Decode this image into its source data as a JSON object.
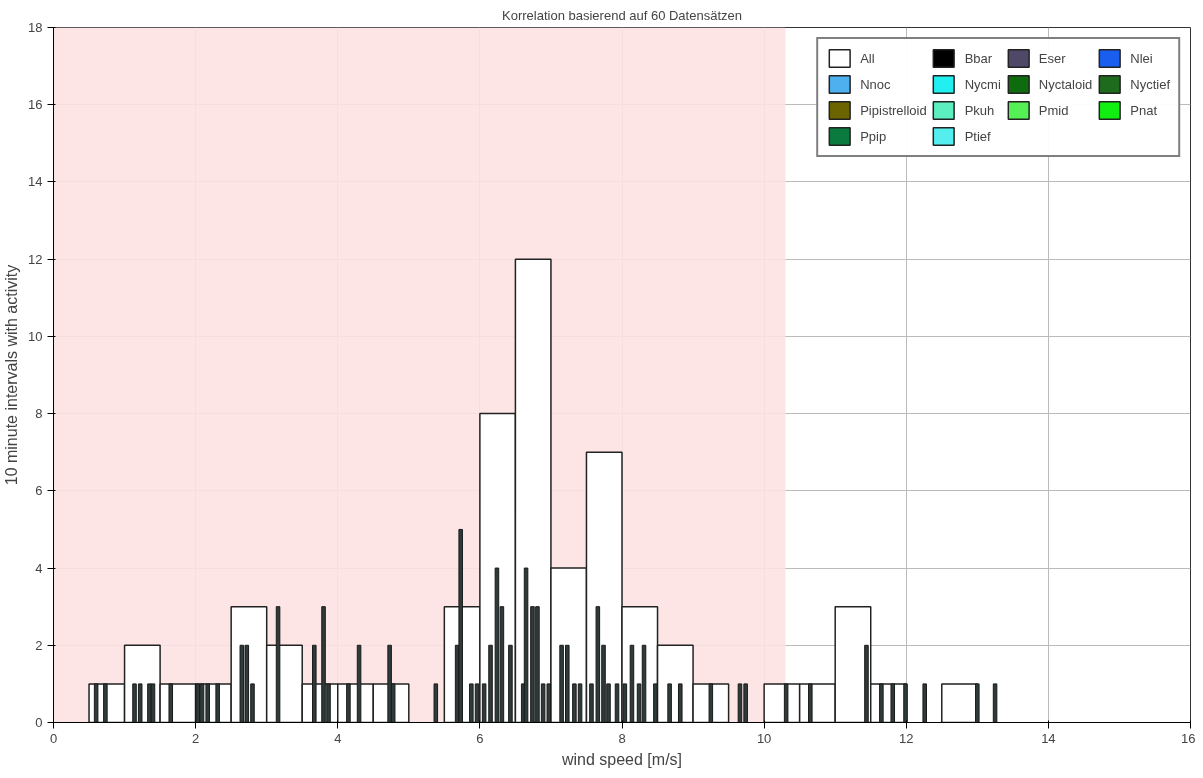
{
  "chart_data": {
    "type": "histogram",
    "title": "Korrelation basierend auf 60 Datensätzen",
    "xlabel": "wind speed [m/s]",
    "ylabel": "10 minute intervals with activity",
    "bins": [
      0.5,
      1.0,
      1.5,
      2.0,
      2.5,
      3.0,
      3.5,
      4.0,
      4.5,
      5.0,
      5.5,
      6.0,
      6.5,
      7.0,
      7.5,
      8.0,
      8.5,
      9.0,
      9.5,
      10.0,
      10.5,
      11.0,
      11.5,
      12.0,
      12.5,
      13.0
    ],
    "series": [
      {
        "name": "All",
        "color": "#ffffff",
        "values": [
          1,
          2,
          1,
          1,
          3,
          2,
          1,
          1,
          1,
          0,
          3,
          8,
          12,
          4,
          7,
          3,
          2,
          1,
          0,
          1,
          1,
          3,
          1,
          0,
          1
        ]
      },
      {
        "type": "bar",
        "color": "#2f3b3b",
        "x": [
          0.6,
          0.73,
          1.14,
          1.22,
          1.35,
          1.4,
          1.65,
          2.03,
          2.09,
          2.17,
          2.31,
          2.65,
          2.72,
          2.8,
          3.16,
          3.67,
          3.8,
          3.87,
          4.15,
          4.3,
          4.73,
          4.78,
          5.38,
          5.68,
          5.73,
          5.88,
          5.96,
          6.06,
          6.15,
          6.24,
          6.31,
          6.43,
          6.61,
          6.65,
          6.74,
          6.81,
          6.89,
          6.97,
          7.15,
          7.23,
          7.33,
          7.41,
          7.57,
          7.66,
          7.74,
          7.81,
          7.93,
          8.04,
          8.14,
          8.24,
          8.31,
          8.47,
          8.67,
          8.82,
          9.25,
          9.66,
          9.74,
          10.31,
          10.65,
          11.44,
          11.65,
          11.81,
          11.99,
          12.26,
          13.0,
          13.25
        ],
        "values": [
          1,
          1,
          1,
          1,
          1,
          1,
          1,
          1,
          1,
          1,
          1,
          2,
          2,
          1,
          3,
          2,
          3,
          1,
          1,
          2,
          2,
          1,
          1,
          2,
          5,
          1,
          1,
          1,
          2,
          4,
          3,
          2,
          1,
          4,
          3,
          3,
          1,
          1,
          2,
          2,
          1,
          1,
          1,
          3,
          2,
          1,
          1,
          1,
          2,
          1,
          2,
          1,
          1,
          1,
          1,
          1,
          1,
          1,
          1,
          2,
          1,
          1,
          1,
          1,
          1,
          1
        ]
      },
      {
        "type": "bar",
        "name": "Bbar",
        "color": "#000000"
      },
      {
        "type": "bar",
        "name": "Eser",
        "color": "#4f4866"
      },
      {
        "type": "bar",
        "name": "Nlei",
        "color": "#1a5ef0"
      },
      {
        "type": "bar",
        "name": "Nnoc",
        "color": "#4fb0f0"
      },
      {
        "type": "bar",
        "name": "Nycmi",
        "color": "#22f0f0"
      },
      {
        "type": "bar",
        "name": "Nyctaloid",
        "color": "#0e6b0e"
      },
      {
        "type": "bar",
        "name": "Nyctief",
        "color": "#1e6b1e"
      },
      {
        "type": "bar",
        "name": "Pipistrelloid",
        "color": "#6b6400"
      },
      {
        "type": "bar",
        "name": "Pkuh",
        "color": "#5cf0c0"
      },
      {
        "type": "bar",
        "name": "Pmid",
        "color": "#55f055"
      },
      {
        "type": "bar",
        "name": "Pnat",
        "color": "#11ee11"
      },
      {
        "type": "bar",
        "name": "Ppip",
        "color": "#0b7a3e"
      },
      {
        "type": "bar",
        "name": "Ptief",
        "color": "#55eeee"
      }
    ],
    "bands": [
      {
        "axis": "x",
        "from": 0,
        "to": 10.3,
        "color": "#fde2e2"
      }
    ],
    "xlim": [
      0,
      16
    ],
    "xticks": [
      0,
      2,
      4,
      6,
      8,
      10,
      12,
      14,
      16
    ],
    "ylim": [
      0,
      18
    ],
    "yticks": [
      0,
      2,
      4,
      6,
      8,
      10,
      12,
      14,
      16,
      18
    ],
    "grid": true,
    "legend": "top right"
  }
}
